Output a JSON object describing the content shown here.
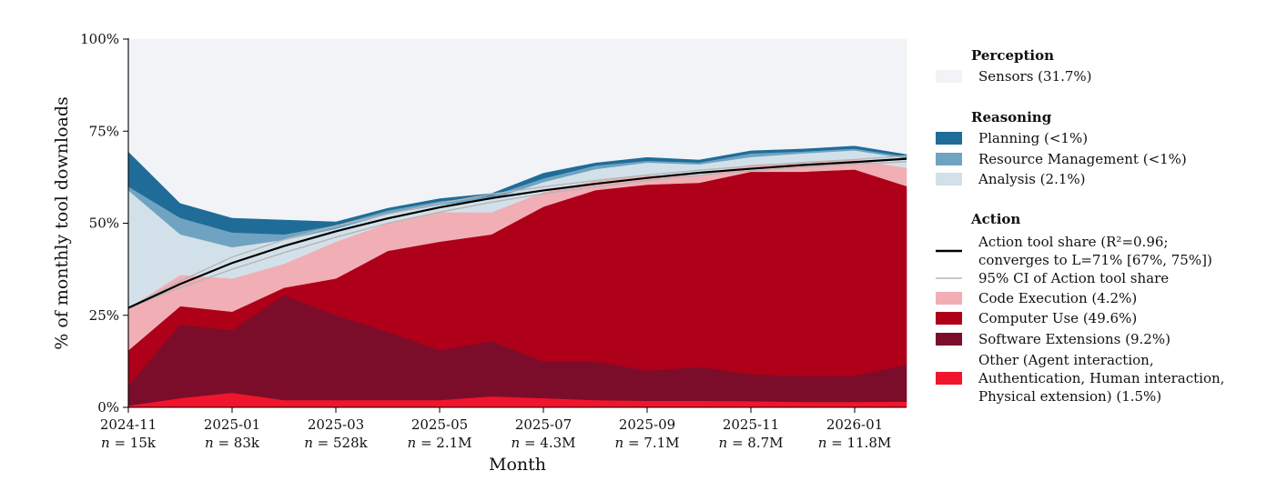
{
  "chart_data": {
    "type": "area",
    "stacking": "normalized-percent",
    "xlabel": "Month",
    "ylabel": "% of monthly tool downloads",
    "ylim": [
      0,
      100
    ],
    "y_ticks": [
      "0%",
      "25%",
      "50%",
      "75%",
      "100%"
    ],
    "months": [
      "2024-11",
      "2024-12",
      "2025-01",
      "2025-02",
      "2025-03",
      "2025-04",
      "2025-05",
      "2025-06",
      "2025-07",
      "2025-08",
      "2025-09",
      "2025-10",
      "2025-11",
      "2025-12",
      "2026-01",
      "2026-02"
    ],
    "x_ticks": [
      {
        "index": 0,
        "label": "2024-11",
        "n": "15k"
      },
      {
        "index": 2,
        "label": "2025-01",
        "n": "83k"
      },
      {
        "index": 4,
        "label": "2025-03",
        "n": "528k"
      },
      {
        "index": 6,
        "label": "2025-05",
        "n": "2.1M"
      },
      {
        "index": 8,
        "label": "2025-07",
        "n": "4.3M"
      },
      {
        "index": 10,
        "label": "2025-09",
        "n": "7.1M"
      },
      {
        "index": 12,
        "label": "2025-11",
        "n": "8.7M"
      },
      {
        "index": 14,
        "label": "2026-01",
        "n": "11.8M"
      }
    ],
    "n_prefix": "n",
    "n_equals": " = ",
    "series": [
      {
        "name": "Other",
        "color": "#f0152c",
        "values": [
          0.5,
          2.5,
          4,
          2,
          2,
          2,
          2,
          3,
          2.5,
          2,
          1.8,
          1.8,
          1.7,
          1.5,
          1.5,
          1.6
        ]
      },
      {
        "name": "Software Extensions",
        "color": "#7b0d2a",
        "values": [
          5.5,
          20,
          17,
          28.5,
          23,
          18.5,
          13.5,
          15,
          10,
          10.5,
          8.2,
          9.2,
          7.3,
          7,
          7.1,
          10
        ]
      },
      {
        "name": "Computer Use",
        "color": "#ae0019",
        "values": [
          9.5,
          5,
          5,
          2,
          10,
          22,
          29.5,
          29,
          42,
          46.5,
          50.5,
          50,
          55,
          55.5,
          56,
          48.5
        ]
      },
      {
        "name": "Code Execution",
        "color": "#f2aeb5",
        "values": [
          11.5,
          8.5,
          9,
          6.5,
          10,
          7.5,
          8,
          6,
          4,
          2.5,
          2.5,
          2.2,
          2,
          2.5,
          2.7,
          5
        ]
      },
      {
        "name": "Analysis",
        "color": "#d2e1e9",
        "values": [
          32,
          11,
          8.5,
          6.5,
          3.5,
          2.5,
          2,
          3.5,
          2.7,
          3.2,
          3.5,
          2.8,
          2,
          2.5,
          2.5,
          2.5
        ]
      },
      {
        "name": "Resource Management",
        "color": "#6fa3c1",
        "values": [
          1,
          4.5,
          4,
          1.5,
          1,
          1,
          1,
          1,
          1,
          1,
          0.5,
          0.5,
          1,
          0.5,
          0.5,
          0.5
        ]
      },
      {
        "name": "Planning",
        "color": "#1f6c98",
        "values": [
          9.5,
          4,
          4,
          4,
          1,
          0.7,
          0.8,
          0.7,
          1.5,
          0.8,
          1,
          0.8,
          0.8,
          0.8,
          0.8,
          0.7
        ]
      },
      {
        "name": "Sensors",
        "color": "#f1f3f7",
        "values": [
          30.5,
          44.5,
          48.5,
          49,
          49.5,
          45.8,
          43.2,
          41.8,
          36.3,
          33.5,
          32,
          32.7,
          30.2,
          29.7,
          28.9,
          31.2
        ]
      }
    ],
    "fit_line": {
      "name": "Action tool share",
      "color": "#000000",
      "values": [
        27,
        33.5,
        39.2,
        43.8,
        47.8,
        51.3,
        54.3,
        56.8,
        58.9,
        60.7,
        62.3,
        63.7,
        64.8,
        65.8,
        66.6,
        67.5
      ]
    },
    "ci": {
      "color": "#b5b5b5",
      "lower": [
        27,
        32.5,
        37.5,
        42,
        46.2,
        50,
        53,
        55.7,
        58,
        59.9,
        61.6,
        63,
        64.2,
        65.2,
        66,
        66.7
      ],
      "upper": [
        27,
        34.3,
        40.8,
        45.5,
        49.3,
        52.5,
        55.4,
        57.9,
        59.9,
        61.6,
        63.1,
        64.4,
        65.5,
        66.5,
        67.3,
        68.3
      ]
    },
    "legend": {
      "position": "right",
      "groups": [
        {
          "title": "Perception",
          "items": [
            {
              "kind": "patch",
              "color": "#f1f3f7",
              "lines": [
                "Sensors (31.7%)"
              ]
            }
          ]
        },
        {
          "title": "Reasoning",
          "items": [
            {
              "kind": "patch",
              "color": "#1f6c98",
              "lines": [
                "Planning (<1%)"
              ]
            },
            {
              "kind": "patch",
              "color": "#6fa3c1",
              "lines": [
                "Resource Management (<1%)"
              ]
            },
            {
              "kind": "patch",
              "color": "#d2e1e9",
              "lines": [
                "Analysis (2.1%)"
              ]
            }
          ]
        },
        {
          "title": "Action",
          "items": [
            {
              "kind": "line",
              "color": "#000000",
              "lines": [
                "Action tool share (R²=0.96;",
                "converges to L=71% [67%, 75%])"
              ]
            },
            {
              "kind": "thinline",
              "color": "#b5b5b5",
              "lines": [
                "95% CI of Action tool share"
              ]
            },
            {
              "kind": "patch",
              "color": "#f2aeb5",
              "lines": [
                "Code Execution (4.2%)"
              ]
            },
            {
              "kind": "patch",
              "color": "#ae0019",
              "lines": [
                "Computer Use (49.6%)"
              ]
            },
            {
              "kind": "patch",
              "color": "#7b0d2a",
              "lines": [
                "Software Extensions (9.2%)"
              ]
            },
            {
              "kind": "patch",
              "color": "#f0152c",
              "lines": [
                "Other (Agent interaction,",
                "Authentication, Human interaction,",
                "Physical extension) (1.5%)"
              ]
            }
          ]
        }
      ]
    }
  }
}
